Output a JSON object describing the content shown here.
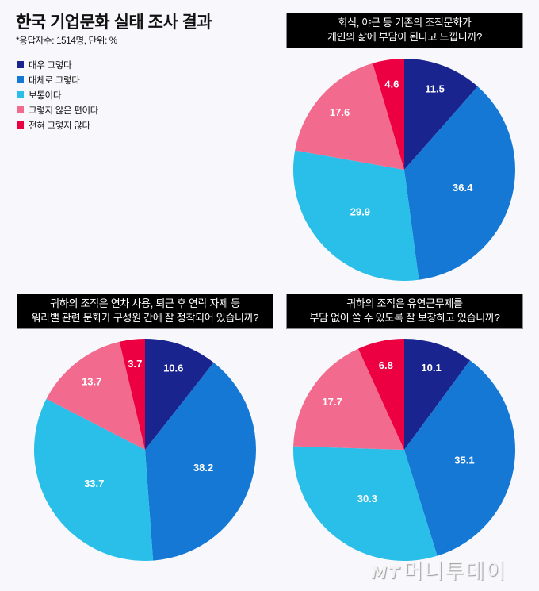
{
  "header": {
    "title": "한국 기업문화 실태 조사 결과",
    "subtitle": "*응답자수: 1514명, 단위: %"
  },
  "legend": [
    {
      "label": "매우 그렇다",
      "color": "#1a248f"
    },
    {
      "label": "대체로 그렇다",
      "color": "#1478d4"
    },
    {
      "label": "보통이다",
      "color": "#29bfe9"
    },
    {
      "label": "그렇지 않은 편이다",
      "color": "#f26a8d"
    },
    {
      "label": "전혀 그렇지 않다",
      "color": "#ec0041"
    }
  ],
  "watermark": {
    "mark": "MT",
    "text": "머니투데이"
  },
  "chart_data": [
    {
      "type": "pie",
      "title": "회식, 야근 등 기존의 조직문화가 개인의 삶에 부담이 된다고 느낍니까?",
      "title_lines": [
        "회식, 야근 등 기존의 조직문화가",
        "개인의 삶에 부담이 된다고 느낍니까?"
      ],
      "categories": [
        "매우 그렇다",
        "대체로 그렇다",
        "보통이다",
        "그렇지 않은 편이다",
        "전혀 그렇지 않다"
      ],
      "values": [
        11.5,
        36.4,
        29.9,
        17.6,
        4.6
      ],
      "labels": [
        "11.5",
        "36.4",
        "29.9",
        "17.6",
        "4.6"
      ],
      "unit": "%",
      "start_angle": "12 o'clock, clockwise"
    },
    {
      "type": "pie",
      "title": "귀하의 조직은 연차 사용, 퇴근 후 연락 자제 등 워라밸 관련 문화가 구성원 간에 잘 정착되어 있습니까?",
      "title_lines": [
        "귀하의 조직은 연차 사용, 퇴근 후 연락 자제 등",
        "워라밸 관련 문화가 구성원 간에 잘 정착되어 있습니까?"
      ],
      "categories": [
        "매우 그렇다",
        "대체로 그렇다",
        "보통이다",
        "그렇지 않은 편이다",
        "전혀 그렇지 않다"
      ],
      "values": [
        10.6,
        38.2,
        33.7,
        13.7,
        3.7
      ],
      "labels": [
        "10.6",
        "38.2",
        "33.7",
        "13.7",
        "3.7"
      ],
      "unit": "%",
      "start_angle": "12 o'clock, clockwise"
    },
    {
      "type": "pie",
      "title": "귀하의 조직은 유연근무제를 부담 없이 쓸 수 있도록 잘 보장하고 있습니까?",
      "title_lines": [
        "귀하의 조직은 유연근무제를",
        "부담 없이 쓸 수 있도록 잘 보장하고 있습니까?"
      ],
      "categories": [
        "매우 그렇다",
        "대체로 그렇다",
        "보통이다",
        "그렇지 않은 편이다",
        "전혀 그렇지 않다"
      ],
      "values": [
        10.1,
        35.1,
        30.3,
        17.7,
        6.8
      ],
      "labels": [
        "10.1",
        "35.1",
        "30.3",
        "17.7",
        "6.8"
      ],
      "unit": "%",
      "start_angle": "12 o'clock, clockwise"
    }
  ]
}
